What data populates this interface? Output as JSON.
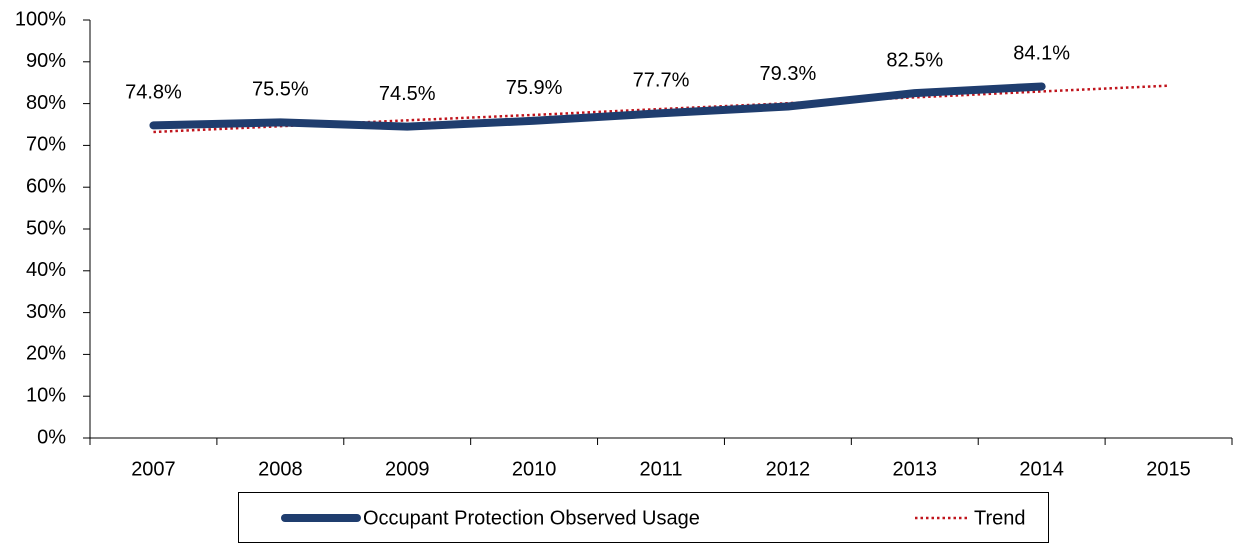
{
  "chart_data": {
    "type": "line",
    "categories": [
      "2007",
      "2008",
      "2009",
      "2010",
      "2011",
      "2012",
      "2013",
      "2014",
      "2015"
    ],
    "series": [
      {
        "name": "Occupant Protection Observed Usage",
        "color": "#1f3d6e",
        "values": [
          74.8,
          75.5,
          74.5,
          75.9,
          77.7,
          79.3,
          82.5,
          84.1,
          null
        ],
        "value_labels": [
          "74.8%",
          "75.5%",
          "74.5%",
          "75.9%",
          "77.7%",
          "79.3%",
          "82.5%",
          "84.1%",
          null
        ]
      },
      {
        "name": "Trend",
        "color": "#c0141c",
        "dash": "dotted",
        "values": [
          73.2,
          74.6,
          76.0,
          77.3,
          78.7,
          80.1,
          81.5,
          82.9,
          84.3
        ]
      }
    ],
    "ylim": [
      0,
      100
    ],
    "yticks": [
      {
        "value": 0,
        "label": "0%"
      },
      {
        "value": 10,
        "label": "10%"
      },
      {
        "value": 20,
        "label": "20%"
      },
      {
        "value": 30,
        "label": "30%"
      },
      {
        "value": 40,
        "label": "40%"
      },
      {
        "value": 50,
        "label": "50%"
      },
      {
        "value": 60,
        "label": "60%"
      },
      {
        "value": 70,
        "label": "70%"
      },
      {
        "value": 80,
        "label": "80%"
      },
      {
        "value": 90,
        "label": "90%"
      },
      {
        "value": 100,
        "label": "100%"
      }
    ],
    "legend": "bottom"
  }
}
